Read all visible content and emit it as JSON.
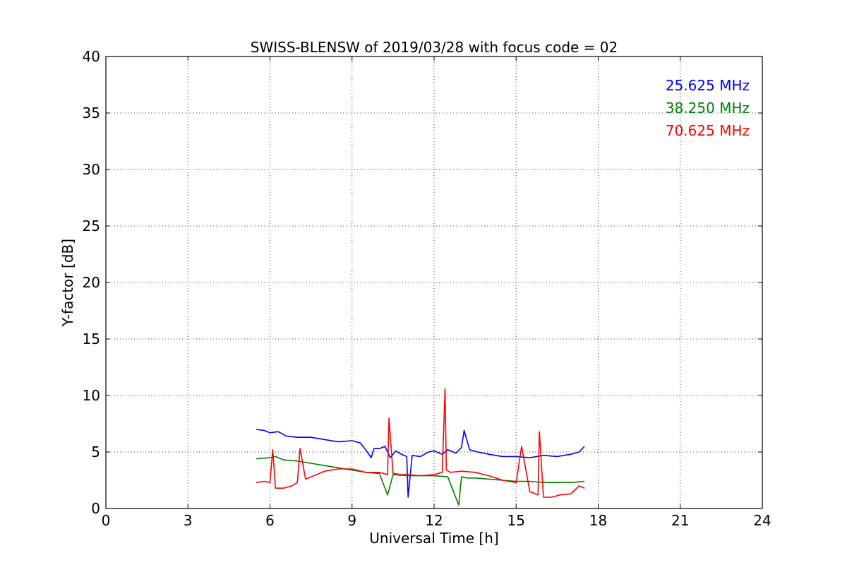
{
  "chart_data": {
    "type": "line",
    "title": "SWISS-BLENSW of 2019/03/28 with focus code = 02",
    "xlabel": "Universal Time [h]",
    "ylabel": "Y-factor [dB]",
    "xlim": [
      0,
      24
    ],
    "ylim": [
      0,
      40
    ],
    "xticks": [
      0,
      3,
      6,
      9,
      12,
      15,
      18,
      21,
      24
    ],
    "yticks": [
      0,
      5,
      10,
      15,
      20,
      25,
      30,
      35,
      40
    ],
    "grid": true,
    "legend_placement": "top-right",
    "series": [
      {
        "name": "25.625 MHz",
        "color": "#0000ff",
        "x": [
          5.5,
          5.8,
          6.0,
          6.3,
          6.6,
          7.0,
          7.5,
          8.0,
          8.5,
          9.0,
          9.3,
          9.5,
          9.7,
          9.8,
          10.0,
          10.2,
          10.4,
          10.6,
          10.8,
          11.0,
          11.05,
          11.2,
          11.5,
          11.8,
          12.0,
          12.3,
          12.5,
          12.8,
          13.0,
          13.1,
          13.3,
          13.6,
          14.0,
          14.5,
          15.0,
          15.5,
          16.0,
          16.5,
          17.0,
          17.3,
          17.5
        ],
        "y": [
          7.0,
          6.9,
          6.7,
          6.8,
          6.4,
          6.3,
          6.3,
          6.1,
          5.9,
          6.0,
          5.8,
          5.2,
          4.5,
          5.3,
          5.3,
          5.5,
          4.5,
          5.1,
          4.8,
          4.6,
          1.0,
          4.7,
          4.6,
          5.0,
          5.1,
          4.8,
          5.2,
          4.9,
          5.4,
          6.9,
          5.2,
          5.0,
          4.8,
          4.6,
          4.6,
          4.5,
          4.7,
          4.6,
          4.8,
          5.0,
          5.5
        ]
      },
      {
        "name": "38.250 MHz",
        "color": "#008000",
        "x": [
          5.5,
          6.0,
          6.2,
          6.5,
          7.0,
          7.5,
          8.0,
          8.5,
          9.0,
          9.5,
          10.0,
          10.3,
          10.5,
          11.0,
          11.5,
          12.0,
          12.5,
          12.9,
          13.0,
          13.2,
          13.5,
          14.0,
          14.5,
          15.0,
          15.5,
          16.0,
          16.5,
          17.0,
          17.5
        ],
        "y": [
          4.4,
          4.5,
          4.6,
          4.3,
          4.2,
          4.0,
          3.8,
          3.6,
          3.4,
          3.2,
          3.1,
          1.2,
          3.0,
          2.9,
          2.9,
          2.9,
          2.8,
          0.3,
          2.8,
          2.7,
          2.7,
          2.6,
          2.5,
          2.4,
          2.4,
          2.3,
          2.3,
          2.3,
          2.4
        ]
      },
      {
        "name": "70.625 MHz",
        "color": "#ff0000",
        "x": [
          5.5,
          5.8,
          6.0,
          6.1,
          6.2,
          6.5,
          6.8,
          7.0,
          7.1,
          7.3,
          7.6,
          8.0,
          8.5,
          9.0,
          9.5,
          10.0,
          10.3,
          10.35,
          10.5,
          10.8,
          11.0,
          11.5,
          12.0,
          12.3,
          12.4,
          12.45,
          12.6,
          13.0,
          13.5,
          14.0,
          14.5,
          15.0,
          15.2,
          15.5,
          15.8,
          15.85,
          16.0,
          16.3,
          16.6,
          17.0,
          17.3,
          17.5
        ],
        "y": [
          2.3,
          2.4,
          2.3,
          5.2,
          1.8,
          1.8,
          2.0,
          2.3,
          5.3,
          2.6,
          2.9,
          3.3,
          3.5,
          3.5,
          3.2,
          3.2,
          3.0,
          8.0,
          3.1,
          3.0,
          3.0,
          2.9,
          3.0,
          3.2,
          10.6,
          3.4,
          3.2,
          3.3,
          3.2,
          2.9,
          2.5,
          2.3,
          5.5,
          1.5,
          1.2,
          6.8,
          1.0,
          1.0,
          1.2,
          1.3,
          2.0,
          1.8
        ]
      }
    ]
  }
}
